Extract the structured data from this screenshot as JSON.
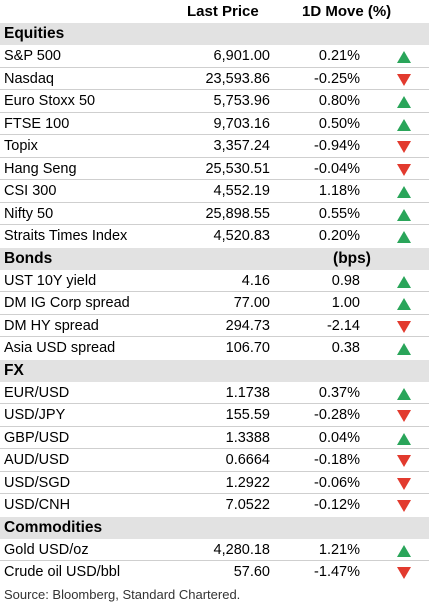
{
  "header": {
    "price_col": "Last Price",
    "move_col": "1D Move (%)"
  },
  "colors": {
    "up": "#2aa55a",
    "down": "#e23a2e",
    "section_bg": "#e2e2e2"
  },
  "sections": [
    {
      "title": "Equities",
      "unit": "",
      "rows": [
        {
          "name": "S&P 500",
          "price": "6,901.00",
          "move": "0.21%",
          "dir": "up"
        },
        {
          "name": "Nasdaq",
          "price": "23,593.86",
          "move": "-0.25%",
          "dir": "down"
        },
        {
          "name": "Euro Stoxx 50",
          "price": "5,753.96",
          "move": "0.80%",
          "dir": "up"
        },
        {
          "name": "FTSE 100",
          "price": "9,703.16",
          "move": "0.50%",
          "dir": "up"
        },
        {
          "name": "Topix",
          "price": "3,357.24",
          "move": "-0.94%",
          "dir": "down"
        },
        {
          "name": "Hang Seng",
          "price": "25,530.51",
          "move": "-0.04%",
          "dir": "down"
        },
        {
          "name": "CSI 300",
          "price": "4,552.19",
          "move": "1.18%",
          "dir": "up"
        },
        {
          "name": "Nifty 50",
          "price": "25,898.55",
          "move": "0.55%",
          "dir": "up"
        },
        {
          "name": "Straits Times Index",
          "price": "4,520.83",
          "move": "0.20%",
          "dir": "up"
        }
      ]
    },
    {
      "title": "Bonds",
      "unit": "(bps)",
      "rows": [
        {
          "name": "UST 10Y yield",
          "price": "4.16",
          "move": "0.98",
          "dir": "up"
        },
        {
          "name": "DM IG Corp spread",
          "price": "77.00",
          "move": "1.00",
          "dir": "up"
        },
        {
          "name": "DM HY spread",
          "price": "294.73",
          "move": "-2.14",
          "dir": "down"
        },
        {
          "name": "Asia USD spread",
          "price": "106.70",
          "move": "0.38",
          "dir": "up"
        }
      ]
    },
    {
      "title": "FX",
      "unit": "",
      "rows": [
        {
          "name": "EUR/USD",
          "price": "1.1738",
          "move": "0.37%",
          "dir": "up"
        },
        {
          "name": "USD/JPY",
          "price": "155.59",
          "move": "-0.28%",
          "dir": "down"
        },
        {
          "name": "GBP/USD",
          "price": "1.3388",
          "move": "0.04%",
          "dir": "up"
        },
        {
          "name": "AUD/USD",
          "price": "0.6664",
          "move": "-0.18%",
          "dir": "down"
        },
        {
          "name": "USD/SGD",
          "price": "1.2922",
          "move": "-0.06%",
          "dir": "down"
        },
        {
          "name": "USD/CNH",
          "price": "7.0522",
          "move": "-0.12%",
          "dir": "down"
        }
      ]
    },
    {
      "title": "Commodities",
      "unit": "",
      "rows": [
        {
          "name": "Gold USD/oz",
          "price": "4,280.18",
          "move": "1.21%",
          "dir": "up"
        },
        {
          "name": "Crude oil USD/bbl",
          "price": "57.60",
          "move": "-1.47%",
          "dir": "down"
        }
      ]
    }
  ],
  "source": "Source: Bloomberg, Standard Chartered."
}
